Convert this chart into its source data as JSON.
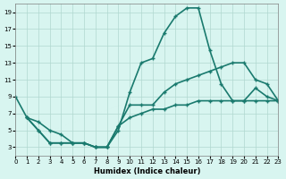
{
  "title": "",
  "xlabel": "Humidex (Indice chaleur)",
  "ylabel": "",
  "bg_color": "#d8f5f0",
  "grid_color": "#b0d8d0",
  "line_color": "#1a7a6e",
  "xlim": [
    0,
    23
  ],
  "ylim": [
    2,
    20
  ],
  "xticks": [
    0,
    1,
    2,
    3,
    4,
    5,
    6,
    7,
    8,
    9,
    10,
    11,
    12,
    13,
    14,
    15,
    16,
    17,
    18,
    19,
    20,
    21,
    22,
    23
  ],
  "yticks": [
    3,
    5,
    7,
    9,
    11,
    13,
    15,
    17,
    19
  ],
  "line1_x": [
    0,
    1,
    2,
    3,
    4,
    5,
    6,
    7,
    8,
    9,
    10,
    11,
    12,
    13,
    14,
    15,
    16,
    17,
    18,
    19,
    20,
    21,
    22,
    23
  ],
  "line1_y": [
    9,
    6.5,
    6,
    5,
    4.5,
    3.5,
    3.5,
    3,
    3,
    5,
    9.5,
    13,
    13.5,
    16.5,
    18.5,
    19.5,
    19.5,
    14.5,
    10.5,
    8.5,
    8.5,
    10,
    9,
    8.5
  ],
  "line2_x": [
    1,
    2,
    3,
    4,
    5,
    6,
    7,
    8,
    9,
    10,
    11,
    12,
    13,
    14,
    15,
    16,
    17,
    18,
    19,
    20,
    21,
    22,
    23
  ],
  "line2_y": [
    6.5,
    5,
    3.5,
    3.5,
    3.5,
    3.5,
    3,
    3,
    5.5,
    8,
    8,
    8,
    9.5,
    10.5,
    11,
    11.5,
    12,
    12.5,
    13,
    13,
    11,
    10.5,
    8.5
  ],
  "line3_x": [
    1,
    2,
    3,
    4,
    5,
    6,
    7,
    8,
    9,
    10,
    11,
    12,
    13,
    14,
    15,
    16,
    17,
    18,
    19,
    20,
    21,
    22,
    23
  ],
  "line3_y": [
    6.5,
    5,
    3.5,
    3.5,
    3.5,
    3.5,
    3,
    3,
    5.5,
    6.5,
    7,
    7.5,
    7.5,
    8,
    8,
    8.5,
    8.5,
    8.5,
    8.5,
    8.5,
    8.5,
    8.5,
    8.5
  ]
}
